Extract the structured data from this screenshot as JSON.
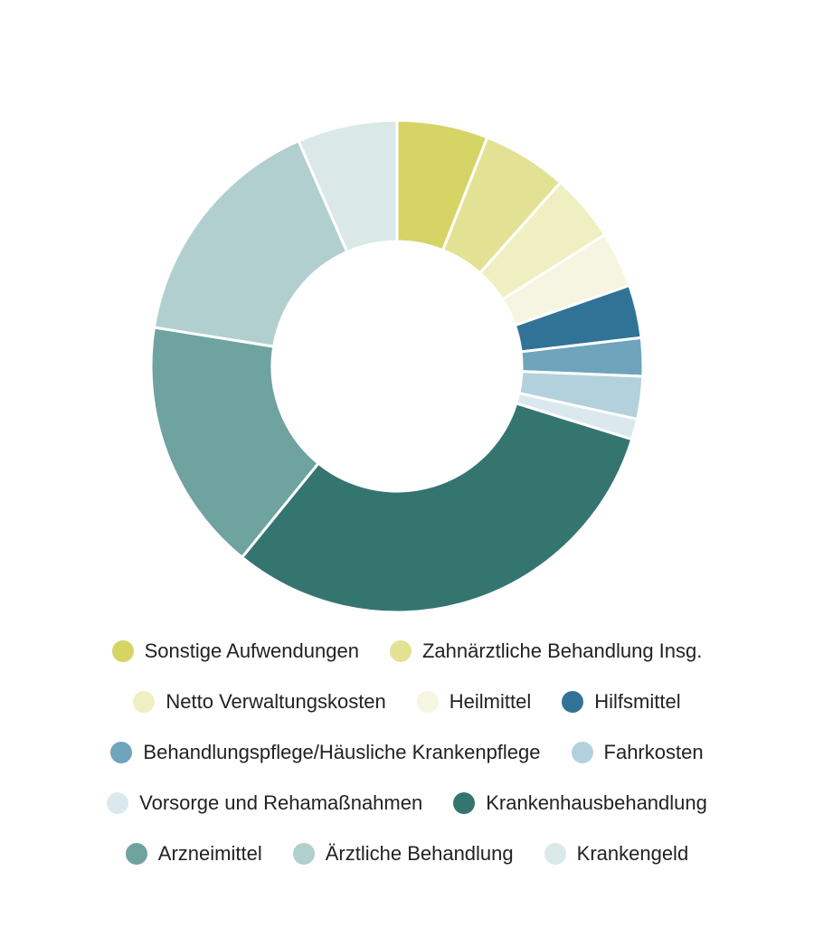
{
  "chart_data": {
    "type": "pie",
    "style": "donut",
    "legend_position": "bottom",
    "series": [
      {
        "name": "Sonstige Aufwendungen",
        "value": 6.2,
        "color": "#d6d464"
      },
      {
        "name": "Zahnärztliche Behandlung Insg.",
        "value": 5.8,
        "color": "#e3e294"
      },
      {
        "name": "Netto Verwaltungskosten",
        "value": 4.6,
        "color": "#efefc2"
      },
      {
        "name": "Heilmittel",
        "value": 3.8,
        "color": "#f5f5e2"
      },
      {
        "name": "Hilfsmittel",
        "value": 3.6,
        "color": "#317397"
      },
      {
        "name": "Behandlungspflege/Häusliche Krankenpflege",
        "value": 2.6,
        "color": "#6ea4bc"
      },
      {
        "name": "Fahrkosten",
        "value": 2.9,
        "color": "#b2d1dc"
      },
      {
        "name": "Vorsorge und Rehamaßnahmen",
        "value": 1.4,
        "color": "#dbe9ee"
      },
      {
        "name": "Krankenhausbehandlung",
        "value": 32.2,
        "color": "#357570"
      },
      {
        "name": "Arzneimittel",
        "value": 17.3,
        "color": "#6fa39f"
      },
      {
        "name": "Ärztliche Behandlung",
        "value": 16.5,
        "color": "#b1cfce"
      },
      {
        "name": "Krankengeld",
        "value": 6.8,
        "color": "#dae8e7"
      }
    ]
  },
  "legend_rows": [
    [
      0,
      1
    ],
    [
      2,
      3,
      4
    ],
    [
      5,
      6
    ],
    [
      7,
      8
    ],
    [
      9,
      10,
      11
    ]
  ]
}
